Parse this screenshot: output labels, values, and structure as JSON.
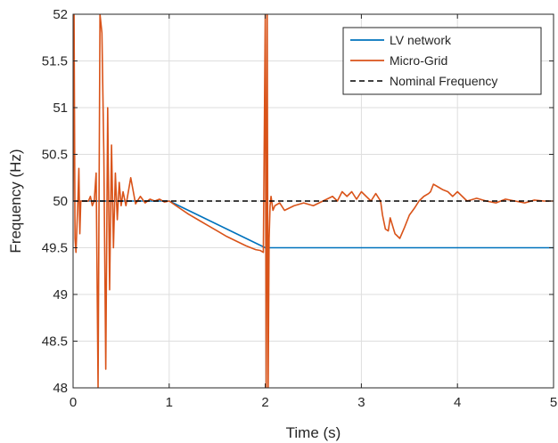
{
  "chart_data": {
    "type": "line",
    "xlabel": "Time (s)",
    "ylabel": "Frequency (Hz)",
    "xlim": [
      0,
      5
    ],
    "ylim": [
      48,
      52
    ],
    "xticks": [
      0,
      1,
      2,
      3,
      4,
      5
    ],
    "yticks": [
      48,
      48.5,
      49,
      49.5,
      50,
      50.5,
      51,
      51.5,
      52
    ],
    "xtick_labels": [
      "0",
      "1",
      "2",
      "3",
      "4",
      "5"
    ],
    "ytick_labels": [
      "48",
      "48.5",
      "49",
      "49.5",
      "50",
      "50.5",
      "51",
      "51.5",
      "52"
    ],
    "grid": true,
    "legend_position": "top-right",
    "series": [
      {
        "name": "LV network",
        "color": "#0072BD",
        "style": "solid",
        "x": [
          0,
          1.0,
          1.1,
          1.2,
          1.3,
          1.4,
          1.5,
          1.6,
          1.7,
          1.8,
          1.9,
          2.0,
          2.04,
          5.0
        ],
        "y": [
          50.0,
          50.0,
          49.95,
          49.9,
          49.85,
          49.8,
          49.75,
          49.7,
          49.65,
          49.6,
          49.55,
          49.5,
          49.5,
          49.5
        ]
      },
      {
        "name": "Micro-Grid",
        "color": "#D95319",
        "style": "solid",
        "x": [
          0,
          0.01,
          0.02,
          0.03,
          0.05,
          0.06,
          0.07,
          0.08,
          0.1,
          0.12,
          0.14,
          0.16,
          0.18,
          0.2,
          0.22,
          0.24,
          0.26,
          0.28,
          0.3,
          0.32,
          0.34,
          0.36,
          0.38,
          0.4,
          0.42,
          0.44,
          0.46,
          0.48,
          0.5,
          0.52,
          0.55,
          0.6,
          0.65,
          0.7,
          0.75,
          0.8,
          0.85,
          0.9,
          0.95,
          1.0,
          1.1,
          1.2,
          1.3,
          1.4,
          1.5,
          1.6,
          1.7,
          1.8,
          1.9,
          1.95,
          1.98,
          2.0,
          2.01,
          2.02,
          2.03,
          2.04,
          2.05,
          2.06,
          2.08,
          2.1,
          2.15,
          2.2,
          2.3,
          2.4,
          2.5,
          2.6,
          2.7,
          2.75,
          2.8,
          2.85,
          2.9,
          2.95,
          3.0,
          3.05,
          3.1,
          3.15,
          3.2,
          3.22,
          3.25,
          3.28,
          3.3,
          3.35,
          3.4,
          3.45,
          3.5,
          3.55,
          3.6,
          3.65,
          3.7,
          3.72,
          3.75,
          3.8,
          3.85,
          3.9,
          3.95,
          4.0,
          4.05,
          4.1,
          4.2,
          4.3,
          4.4,
          4.5,
          4.6,
          4.7,
          4.8,
          4.9,
          5.0
        ],
        "y": [
          50.0,
          52.0,
          49.6,
          49.45,
          50.0,
          50.35,
          49.65,
          50.0,
          50.0,
          50.0,
          50.0,
          50.0,
          50.05,
          49.95,
          50.0,
          50.3,
          48.0,
          52.0,
          51.8,
          50.5,
          48.2,
          51.0,
          49.05,
          50.6,
          49.5,
          50.3,
          49.8,
          50.2,
          49.95,
          50.1,
          49.95,
          50.25,
          49.97,
          50.05,
          49.98,
          50.02,
          50.0,
          50.02,
          49.99,
          50.0,
          49.93,
          49.86,
          49.8,
          49.74,
          49.68,
          49.62,
          49.57,
          49.52,
          49.48,
          49.47,
          49.45,
          52.0,
          48.0,
          52.0,
          48.0,
          49.6,
          49.95,
          50.05,
          49.9,
          49.95,
          49.98,
          49.9,
          49.95,
          49.98,
          49.95,
          50.0,
          50.05,
          50.0,
          50.1,
          50.05,
          50.1,
          50.02,
          50.1,
          50.05,
          50.0,
          50.08,
          50.0,
          49.85,
          49.7,
          49.68,
          49.82,
          49.65,
          49.6,
          49.72,
          49.85,
          49.92,
          50.0,
          50.05,
          50.08,
          50.1,
          50.18,
          50.15,
          50.12,
          50.1,
          50.05,
          50.1,
          50.05,
          50.0,
          50.03,
          50.0,
          49.98,
          50.02,
          50.0,
          49.98,
          50.01,
          50.0,
          50.0
        ]
      },
      {
        "name": "Nominal Frequency",
        "color": "#000000",
        "style": "dashed",
        "x": [
          0,
          5
        ],
        "y": [
          50,
          50
        ]
      }
    ]
  }
}
